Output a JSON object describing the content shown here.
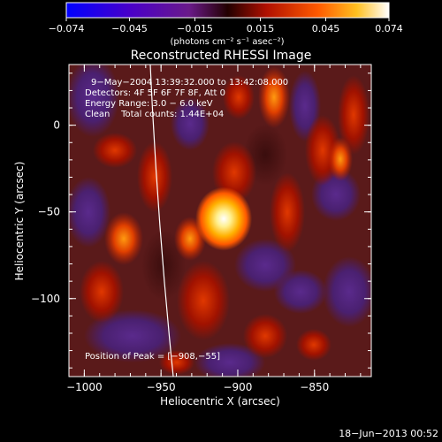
{
  "chart_data": {
    "type": "heatmap",
    "title": "Reconstructed RHESSI Image",
    "xlabel": "Heliocentric X (arcsec)",
    "ylabel": "Heliocentric Y (arcsec)",
    "xlim": [
      -1010,
      -813
    ],
    "ylim": [
      -145,
      35
    ],
    "x_ticks": [
      -1000,
      -950,
      -900,
      -850
    ],
    "x_tick_labels": [
      "−1000",
      "−950",
      "−900",
      "−850"
    ],
    "y_ticks": [
      0,
      -50,
      -100
    ],
    "y_tick_labels": [
      "0",
      "−50",
      "−100"
    ],
    "colorbar": {
      "min": -0.074,
      "max": 0.074,
      "ticks": [
        -0.074,
        -0.045,
        -0.015,
        0.015,
        0.045,
        0.074
      ],
      "tick_labels": [
        "−0.074",
        "−0.045",
        "−0.015",
        "0.015",
        "0.045",
        "0.074"
      ],
      "units_label": "(photons cm⁻² s⁻¹ asec⁻²)"
    },
    "annotations": {
      "time_range": "9−May−2004 13:39:32.000 to 13:42:08.000",
      "detectors": "Detectors: 4F 5F 6F 7F 8F, Att 0",
      "energy_range": "Energy Range: 3.0 − 6.0 keV",
      "method_counts": "Clean    Total counts: 1.44E+04",
      "peak_position": "Position of Peak = [−908,−55]"
    },
    "peak": {
      "x": -908,
      "y": -55
    },
    "timestamp": "18−Jun−2013 00:52"
  }
}
